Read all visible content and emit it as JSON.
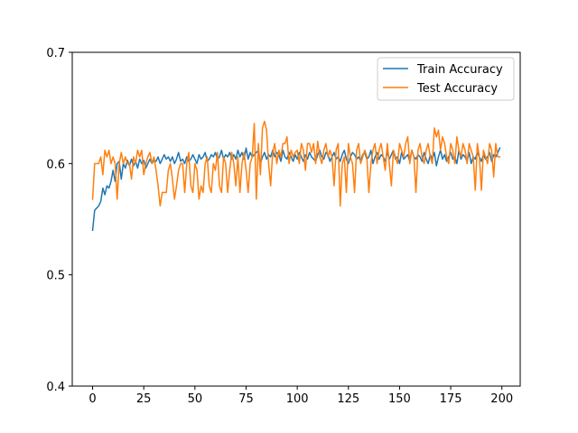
{
  "chart_data": {
    "type": "line",
    "title": "",
    "xlabel": "",
    "ylabel": "",
    "xlim": [
      -9.95,
      208.95
    ],
    "ylim": [
      0.4,
      0.7
    ],
    "xticks": [
      0,
      25,
      50,
      75,
      100,
      125,
      150,
      175,
      200
    ],
    "yticks": [
      0.4,
      0.5,
      0.6,
      0.7
    ],
    "grid": false,
    "legend_position": "top-right",
    "series": [
      {
        "name": "Train Accuracy",
        "color": "#1f77b4",
        "x_start": 0,
        "values": [
          0.54,
          0.558,
          0.56,
          0.562,
          0.566,
          0.578,
          0.572,
          0.58,
          0.578,
          0.584,
          0.594,
          0.584,
          0.6,
          0.602,
          0.586,
          0.6,
          0.596,
          0.603,
          0.598,
          0.604,
          0.598,
          0.602,
          0.596,
          0.604,
          0.6,
          0.603,
          0.596,
          0.6,
          0.604,
          0.6,
          0.603,
          0.602,
          0.606,
          0.6,
          0.604,
          0.608,
          0.604,
          0.606,
          0.602,
          0.606,
          0.6,
          0.604,
          0.61,
          0.602,
          0.604,
          0.6,
          0.606,
          0.602,
          0.604,
          0.608,
          0.604,
          0.6,
          0.608,
          0.604,
          0.606,
          0.61,
          0.602,
          0.604,
          0.608,
          0.606,
          0.61,
          0.604,
          0.606,
          0.612,
          0.604,
          0.608,
          0.606,
          0.61,
          0.604,
          0.608,
          0.604,
          0.612,
          0.606,
          0.61,
          0.604,
          0.614,
          0.604,
          0.61,
          0.606,
          0.608,
          0.61,
          0.612,
          0.6,
          0.606,
          0.61,
          0.604,
          0.608,
          0.606,
          0.612,
          0.606,
          0.61,
          0.608,
          0.602,
          0.612,
          0.606,
          0.604,
          0.61,
          0.606,
          0.602,
          0.608,
          0.604,
          0.61,
          0.606,
          0.602,
          0.608,
          0.604,
          0.61,
          0.606,
          0.604,
          0.602,
          0.608,
          0.612,
          0.606,
          0.604,
          0.61,
          0.608,
          0.602,
          0.606,
          0.61,
          0.604,
          0.606,
          0.602,
          0.608,
          0.612,
          0.604,
          0.6,
          0.606,
          0.61,
          0.608,
          0.604,
          0.606,
          0.602,
          0.608,
          0.61,
          0.604,
          0.606,
          0.612,
          0.6,
          0.606,
          0.61,
          0.604,
          0.608,
          0.606,
          0.602,
          0.61,
          0.604,
          0.608,
          0.612,
          0.604,
          0.606,
          0.6,
          0.61,
          0.604,
          0.606,
          0.608,
          0.602,
          0.612,
          0.606,
          0.604,
          0.608,
          0.606,
          0.602,
          0.61,
          0.604,
          0.6,
          0.608,
          0.604,
          0.61,
          0.598,
          0.606,
          0.612,
          0.604,
          0.608,
          0.602,
          0.606,
          0.61,
          0.604,
          0.606,
          0.6,
          0.612,
          0.604,
          0.608,
          0.606,
          0.602,
          0.61,
          0.6,
          0.606,
          0.604,
          0.61,
          0.606,
          0.602,
          0.608,
          0.604,
          0.606,
          0.61,
          0.602,
          0.608,
          0.606,
          0.61,
          0.614
        ]
      },
      {
        "name": "Test Accuracy",
        "color": "#ff7f0e",
        "x_start": 0,
        "values": [
          0.568,
          0.6,
          0.6,
          0.6,
          0.606,
          0.59,
          0.612,
          0.606,
          0.612,
          0.6,
          0.606,
          0.6,
          0.568,
          0.6,
          0.61,
          0.6,
          0.606,
          0.6,
          0.6,
          0.586,
          0.606,
          0.6,
          0.612,
          0.606,
          0.612,
          0.59,
          0.6,
          0.606,
          0.61,
          0.6,
          0.606,
          0.594,
          0.58,
          0.562,
          0.574,
          0.574,
          0.574,
          0.594,
          0.6,
          0.586,
          0.568,
          0.58,
          0.594,
          0.6,
          0.6,
          0.574,
          0.6,
          0.61,
          0.58,
          0.574,
          0.6,
          0.594,
          0.568,
          0.58,
          0.574,
          0.6,
          0.606,
          0.58,
          0.574,
          0.6,
          0.594,
          0.61,
          0.58,
          0.574,
          0.606,
          0.6,
          0.574,
          0.594,
          0.61,
          0.6,
          0.58,
          0.606,
          0.574,
          0.6,
          0.61,
          0.594,
          0.574,
          0.6,
          0.606,
          0.636,
          0.568,
          0.618,
          0.59,
          0.632,
          0.638,
          0.63,
          0.6,
          0.58,
          0.61,
          0.618,
          0.6,
          0.612,
          0.606,
          0.618,
          0.618,
          0.624,
          0.6,
          0.612,
          0.606,
          0.61,
          0.612,
          0.6,
          0.618,
          0.612,
          0.594,
          0.618,
          0.618,
          0.61,
          0.618,
          0.6,
          0.62,
          0.606,
          0.6,
          0.612,
          0.618,
          0.606,
          0.612,
          0.606,
          0.58,
          0.612,
          0.618,
          0.562,
          0.6,
          0.606,
          0.574,
          0.618,
          0.606,
          0.6,
          0.574,
          0.612,
          0.618,
          0.6,
          0.606,
          0.612,
          0.606,
          0.574,
          0.6,
          0.612,
          0.618,
          0.6,
          0.612,
          0.618,
          0.606,
          0.594,
          0.618,
          0.6,
          0.58,
          0.612,
          0.606,
          0.6,
          0.618,
          0.612,
          0.606,
          0.618,
          0.624,
          0.6,
          0.612,
          0.606,
          0.574,
          0.612,
          0.618,
          0.606,
          0.6,
          0.612,
          0.618,
          0.606,
          0.6,
          0.632,
          0.624,
          0.63,
          0.612,
          0.624,
          0.618,
          0.606,
          0.6,
          0.618,
          0.612,
          0.6,
          0.624,
          0.612,
          0.606,
          0.618,
          0.612,
          0.6,
          0.618,
          0.612,
          0.606,
          0.576,
          0.618,
          0.606,
          0.576,
          0.612,
          0.606,
          0.6,
          0.618,
          0.612,
          0.588,
          0.618,
          0.606,
          0.606
        ]
      }
    ]
  }
}
